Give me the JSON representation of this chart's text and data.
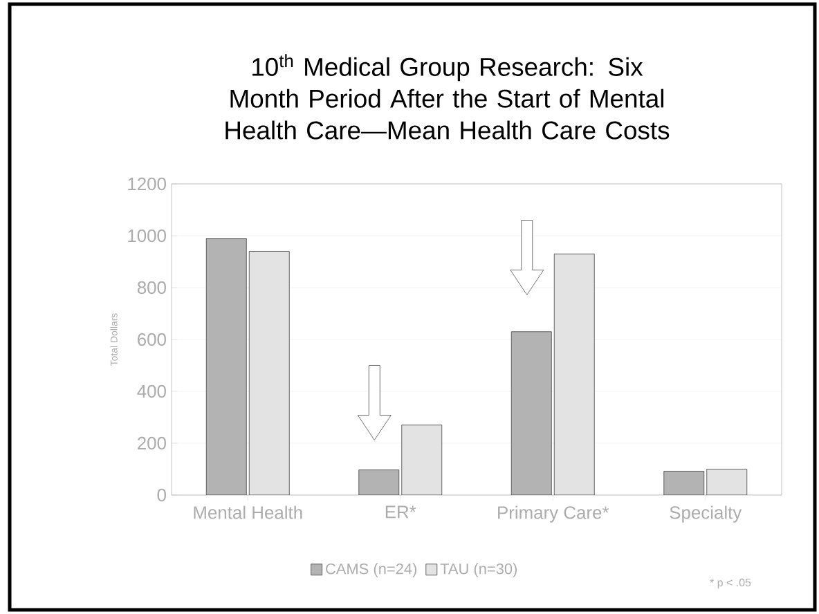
{
  "chart_data": {
    "type": "bar",
    "title": "10$^{th}$ Medical Group Research: Six Month Period After the Start of Mental Health Care—Mean Health Care Costs",
    "ylabel": "Total Dollars",
    "categories": [
      "Mental Health",
      "ER*",
      "Primary Care*",
      "Specialty"
    ],
    "series": [
      {
        "name": "CAMS (n=24)",
        "color": "#b3b3b3",
        "values": [
          990,
          97,
          630,
          92
        ]
      },
      {
        "name": "TAU (n=30)",
        "color": "#e3e3e3",
        "values": [
          940,
          270,
          930,
          100
        ]
      }
    ],
    "ylim": [
      0,
      1200
    ],
    "yticks": [
      0,
      200,
      400,
      600,
      800,
      1000,
      1200
    ],
    "grid": "y",
    "legend": "bottom",
    "annotations": [
      "* p < .05"
    ]
  }
}
